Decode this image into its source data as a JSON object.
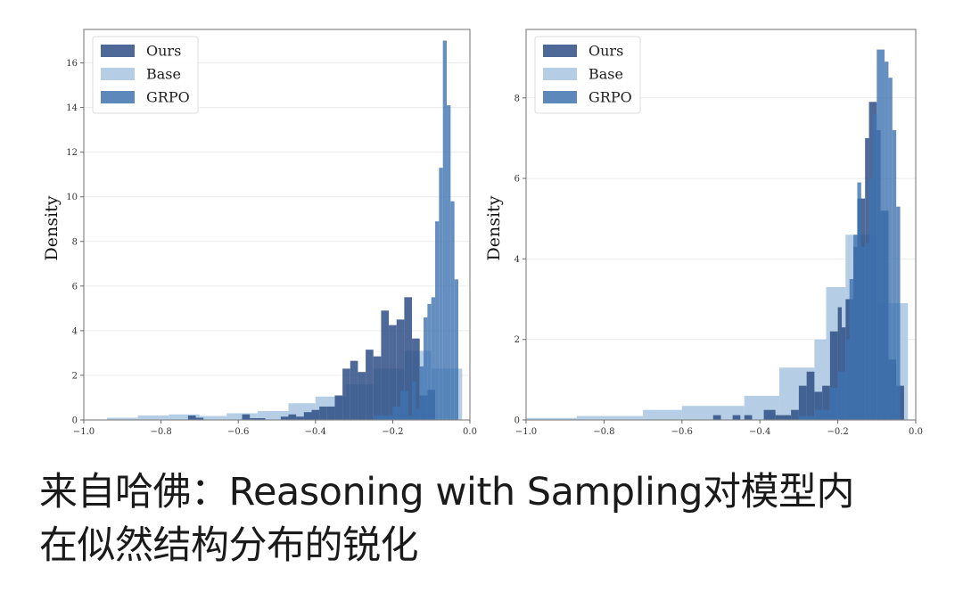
{
  "caption": {
    "line1": "来自哈佛：Reasoning with Sampling对模型内",
    "line2": "在似然结构分布的锐化"
  },
  "colors": {
    "Ours": "#2f4f86",
    "Base": "#a9c6e0",
    "GRPO": "#3f73b0"
  },
  "chart_data": [
    {
      "type": "bar",
      "subtype": "overlaid-histogram",
      "title": "",
      "xlabel": "",
      "ylabel": "Density",
      "xlim": [
        -1.0,
        0.0
      ],
      "ylim": [
        0,
        17.5
      ],
      "xticks": [
        -1.0,
        -0.8,
        -0.6,
        -0.4,
        -0.2,
        0.0
      ],
      "xtick_labels": [
        "−1.0",
        "−0.8",
        "−0.6",
        "−0.4",
        "−0.2",
        "0.0"
      ],
      "yticks": [
        0,
        2,
        4,
        6,
        8,
        10,
        12,
        14,
        16
      ],
      "grid": "horizontal",
      "legend": {
        "position": "upper left",
        "entries": [
          "Ours",
          "Base",
          "GRPO"
        ]
      },
      "series": [
        {
          "name": "Base",
          "bins": [
            [
              -0.94,
              -0.86,
              0.1
            ],
            [
              -0.86,
              -0.78,
              0.2
            ],
            [
              -0.78,
              -0.7,
              0.25
            ],
            [
              -0.7,
              -0.63,
              0.18
            ],
            [
              -0.63,
              -0.55,
              0.3
            ],
            [
              -0.55,
              -0.47,
              0.4
            ],
            [
              -0.47,
              -0.4,
              0.75
            ],
            [
              -0.4,
              -0.32,
              1.05
            ],
            [
              -0.32,
              -0.25,
              1.6
            ],
            [
              -0.25,
              -0.17,
              2.3
            ],
            [
              -0.17,
              -0.1,
              3.1
            ],
            [
              -0.1,
              -0.02,
              2.3
            ]
          ]
        },
        {
          "name": "Ours",
          "bins": [
            [
              -0.73,
              -0.71,
              0.2
            ],
            [
              -0.71,
              -0.69,
              0.1
            ],
            [
              -0.59,
              -0.57,
              0.25
            ],
            [
              -0.57,
              -0.53,
              0.08
            ],
            [
              -0.49,
              -0.47,
              0.15
            ],
            [
              -0.47,
              -0.45,
              0.25
            ],
            [
              -0.45,
              -0.43,
              0.15
            ],
            [
              -0.43,
              -0.41,
              0.35
            ],
            [
              -0.41,
              -0.39,
              0.45
            ],
            [
              -0.39,
              -0.37,
              0.6
            ],
            [
              -0.37,
              -0.35,
              0.6
            ],
            [
              -0.35,
              -0.33,
              1.1
            ],
            [
              -0.33,
              -0.31,
              2.3
            ],
            [
              -0.31,
              -0.29,
              2.65
            ],
            [
              -0.29,
              -0.27,
              2.15
            ],
            [
              -0.27,
              -0.25,
              3.15
            ],
            [
              -0.25,
              -0.23,
              2.85
            ],
            [
              -0.23,
              -0.21,
              4.9
            ],
            [
              -0.21,
              -0.19,
              4.25
            ],
            [
              -0.19,
              -0.17,
              4.5
            ],
            [
              -0.17,
              -0.15,
              5.5
            ],
            [
              -0.15,
              -0.13,
              3.65
            ],
            [
              -0.13,
              -0.11,
              1.1
            ],
            [
              -0.11,
              -0.09,
              1.35
            ],
            [
              -0.09,
              -0.08,
              0.0
            ]
          ]
        },
        {
          "name": "GRPO",
          "bins": [
            [
              -0.25,
              -0.2,
              0.2
            ],
            [
              -0.2,
              -0.18,
              0.6
            ],
            [
              -0.18,
              -0.16,
              1.3
            ],
            [
              -0.16,
              -0.15,
              0.2
            ],
            [
              -0.15,
              -0.14,
              1.7
            ],
            [
              -0.14,
              -0.13,
              0.5
            ],
            [
              -0.13,
              -0.12,
              2.4
            ],
            [
              -0.12,
              -0.11,
              4.6
            ],
            [
              -0.11,
              -0.1,
              5.2
            ],
            [
              -0.1,
              -0.09,
              5.5
            ],
            [
              -0.09,
              -0.08,
              8.9
            ],
            [
              -0.08,
              -0.07,
              11.3
            ],
            [
              -0.07,
              -0.06,
              17.0
            ],
            [
              -0.06,
              -0.05,
              14.1
            ],
            [
              -0.05,
              -0.04,
              9.8
            ],
            [
              -0.04,
              -0.03,
              6.3
            ]
          ]
        }
      ]
    },
    {
      "type": "bar",
      "subtype": "overlaid-histogram",
      "title": "",
      "xlabel": "",
      "ylabel": "Density",
      "xlim": [
        -1.0,
        0.0
      ],
      "ylim": [
        0,
        9.7
      ],
      "xticks": [
        -1.0,
        -0.8,
        -0.6,
        -0.4,
        -0.2,
        0.0
      ],
      "xtick_labels": [
        "−1.0",
        "−0.8",
        "−0.6",
        "−0.4",
        "−0.2",
        "0.0"
      ],
      "yticks": [
        0,
        2,
        4,
        6,
        8
      ],
      "grid": "horizontal",
      "legend": {
        "position": "upper left",
        "entries": [
          "Ours",
          "Base",
          "GRPO"
        ]
      },
      "series": [
        {
          "name": "Base",
          "bins": [
            [
              -1.0,
              -0.87,
              0.05
            ],
            [
              -0.87,
              -0.7,
              0.1
            ],
            [
              -0.7,
              -0.6,
              0.25
            ],
            [
              -0.6,
              -0.44,
              0.35
            ],
            [
              -0.44,
              -0.35,
              0.6
            ],
            [
              -0.35,
              -0.26,
              1.3
            ],
            [
              -0.26,
              -0.23,
              2.0
            ],
            [
              -0.23,
              -0.18,
              3.3
            ],
            [
              -0.18,
              -0.1,
              4.6
            ],
            [
              -0.1,
              -0.02,
              2.9
            ]
          ]
        },
        {
          "name": "Ours",
          "bins": [
            [
              -0.52,
              -0.5,
              0.12
            ],
            [
              -0.47,
              -0.45,
              0.12
            ],
            [
              -0.44,
              -0.42,
              0.12
            ],
            [
              -0.39,
              -0.36,
              0.25
            ],
            [
              -0.36,
              -0.32,
              0.12
            ],
            [
              -0.32,
              -0.3,
              0.25
            ],
            [
              -0.3,
              -0.28,
              0.85
            ],
            [
              -0.28,
              -0.26,
              1.2
            ],
            [
              -0.26,
              -0.24,
              0.7
            ],
            [
              -0.24,
              -0.22,
              0.85
            ],
            [
              -0.22,
              -0.2,
              2.2
            ],
            [
              -0.2,
              -0.19,
              2.8
            ],
            [
              -0.19,
              -0.18,
              2.3
            ],
            [
              -0.18,
              -0.16,
              3.0
            ],
            [
              -0.16,
              -0.15,
              4.3
            ],
            [
              -0.15,
              -0.13,
              5.5
            ],
            [
              -0.13,
              -0.12,
              7.0
            ],
            [
              -0.12,
              -0.1,
              7.9
            ],
            [
              -0.1,
              -0.09,
              7.2
            ],
            [
              -0.09,
              -0.07,
              5.2
            ],
            [
              -0.07,
              -0.05,
              1.5
            ],
            [
              -0.05,
              -0.03,
              0.85
            ]
          ]
        },
        {
          "name": "GRPO",
          "bins": [
            [
              -0.3,
              -0.26,
              0.1
            ],
            [
              -0.26,
              -0.22,
              0.25
            ],
            [
              -0.22,
              -0.2,
              0.8
            ],
            [
              -0.2,
              -0.18,
              1.2
            ],
            [
              -0.18,
              -0.17,
              2.0
            ],
            [
              -0.17,
              -0.16,
              3.5
            ],
            [
              -0.16,
              -0.15,
              4.6
            ],
            [
              -0.15,
              -0.14,
              5.9
            ],
            [
              -0.14,
              -0.13,
              4.3
            ],
            [
              -0.13,
              -0.12,
              4.4
            ],
            [
              -0.12,
              -0.11,
              6.0
            ],
            [
              -0.11,
              -0.1,
              7.6
            ],
            [
              -0.1,
              -0.08,
              9.2
            ],
            [
              -0.08,
              -0.07,
              8.9
            ],
            [
              -0.07,
              -0.06,
              8.5
            ],
            [
              -0.06,
              -0.05,
              7.2
            ],
            [
              -0.05,
              -0.04,
              5.3
            ]
          ]
        }
      ]
    }
  ]
}
